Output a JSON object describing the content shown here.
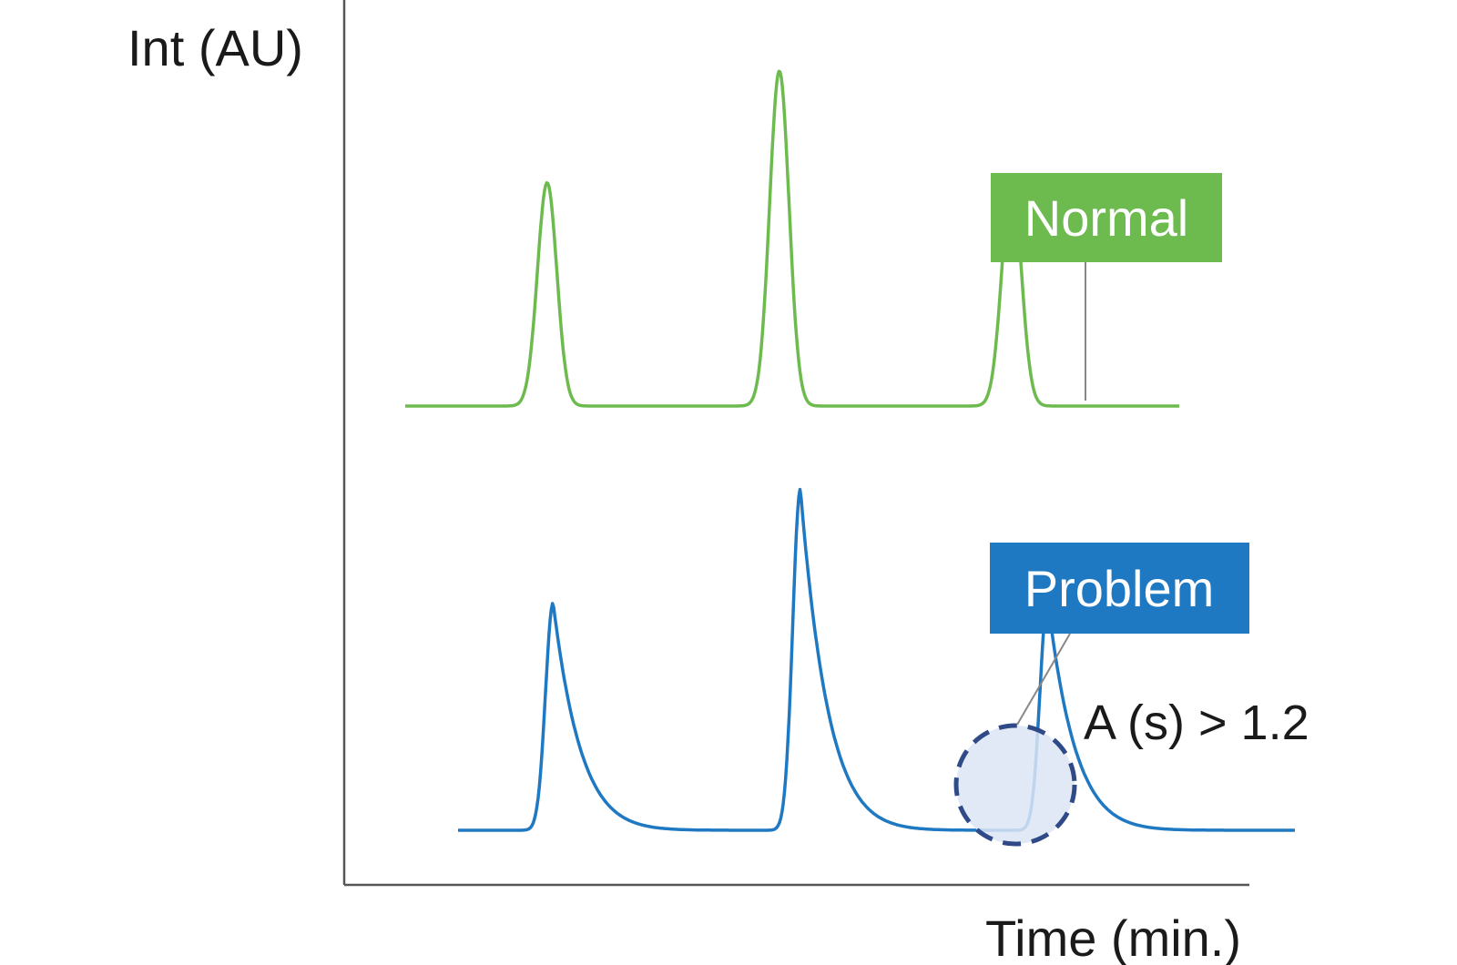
{
  "chart_data": {
    "type": "line",
    "title": "",
    "xlabel": "Time (min.)",
    "ylabel": "Int (AU)",
    "grid": false,
    "legend": "none",
    "series": [
      {
        "name": "Normal",
        "color": "#6dbb4f",
        "peaks": [
          {
            "center": 2.15,
            "height": 0.62,
            "tailing": "none"
          },
          {
            "center": 3.95,
            "height": 0.93,
            "tailing": "none"
          },
          {
            "center": 5.75,
            "height": 0.63,
            "tailing": "none"
          }
        ],
        "baseline": 0.13
      },
      {
        "name": "Problem",
        "color": "#1e78c2",
        "peaks": [
          {
            "center": 2.2,
            "height": 0.62,
            "tailing": "strong"
          },
          {
            "center": 4.15,
            "height": 0.93,
            "tailing": "strong"
          },
          {
            "center": 6.1,
            "height": 0.63,
            "tailing": "strong"
          }
        ],
        "baseline": 0.06
      }
    ],
    "annotations": [
      {
        "text": "A (s) > 1.2",
        "target": "Problem peak 3 tail"
      }
    ]
  },
  "labels": {
    "normal": "Normal",
    "problem": "Problem",
    "asymmetry": "A (s) > 1.2"
  },
  "colors": {
    "normal": "#6dbb4f",
    "problem": "#1e78c2",
    "axis": "#555555",
    "highlight_fill": "#dce5f4",
    "highlight_stroke": "#2f4a87"
  }
}
